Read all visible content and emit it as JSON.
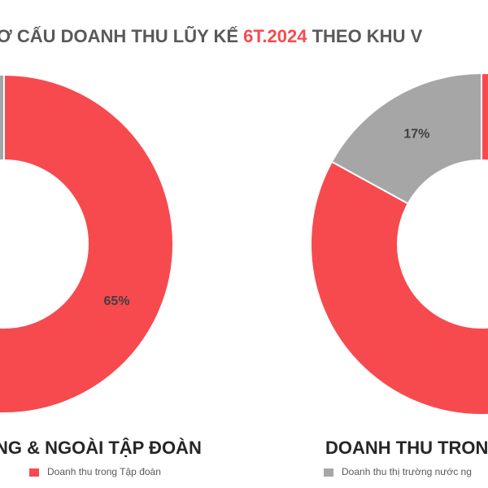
{
  "title_parts": [
    "Ơ CẤU DOANH THU LŨY KẾ ",
    "6T.2024",
    " THEO KHU V"
  ],
  "chart_data": [
    {
      "type": "donut",
      "title": "NG & NGOÀI TẬP ĐOÀN",
      "categories": [
        "Doanh thu trong Tập đoàn",
        null
      ],
      "values": [
        65,
        35
      ],
      "value_labels": [
        "65%",
        null
      ],
      "colors": [
        "#f64a4f",
        "#a6a6a6"
      ]
    },
    {
      "type": "donut",
      "title": "DOANH THU TRON",
      "categories": [
        null,
        "Doanh thu thị trường nước ng"
      ],
      "values": [
        83,
        17
      ],
      "value_labels": [
        null,
        "17%"
      ],
      "colors": [
        "#f64a4f",
        "#a6a6a6"
      ]
    }
  ]
}
